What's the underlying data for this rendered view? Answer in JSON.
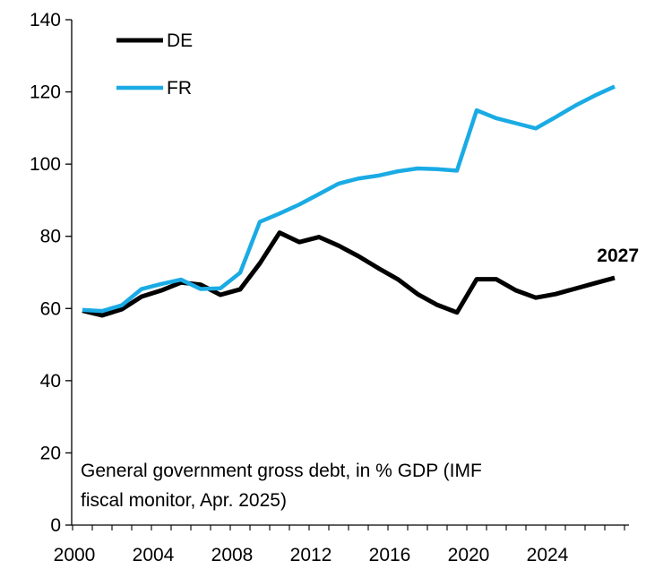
{
  "chart_data": {
    "type": "line",
    "title": "",
    "xlabel": "",
    "ylabel": "",
    "xlim": [
      2000,
      2027
    ],
    "ylim": [
      0,
      140
    ],
    "yticks": [
      0,
      20,
      40,
      60,
      80,
      100,
      120,
      140
    ],
    "xticks": [
      2000,
      2004,
      2008,
      2012,
      2016,
      2020,
      2024
    ],
    "grid": false,
    "legend_position": "top-left",
    "x": [
      2000,
      2001,
      2002,
      2003,
      2004,
      2005,
      2006,
      2007,
      2008,
      2009,
      2010,
      2011,
      2012,
      2013,
      2014,
      2015,
      2016,
      2017,
      2018,
      2019,
      2020,
      2021,
      2022,
      2023,
      2024,
      2025,
      2026,
      2027
    ],
    "series": [
      {
        "name": "DE",
        "color": "#000000",
        "values": [
          59.4,
          58.1,
          59.8,
          63.3,
          65.0,
          67.2,
          66.6,
          63.8,
          65.3,
          72.5,
          81.0,
          78.4,
          79.8,
          77.4,
          74.5,
          71.2,
          68.1,
          64.0,
          61.0,
          58.9,
          68.1,
          68.1,
          65.0,
          63.0,
          64.0,
          65.5,
          67.0,
          68.5
        ]
      },
      {
        "name": "FR",
        "color": "#1aabe4",
        "values": [
          59.6,
          59.3,
          60.9,
          65.4,
          66.8,
          68.0,
          65.4,
          65.6,
          69.9,
          84.0,
          86.3,
          88.8,
          91.7,
          94.6,
          96.0,
          96.8,
          98.0,
          98.8,
          98.6,
          98.2,
          114.9,
          112.7,
          111.3,
          109.9,
          113.0,
          116.2,
          119.0,
          121.5
        ]
      }
    ],
    "annotations": [
      {
        "text": "2027",
        "x": 2027,
        "series": "DE"
      }
    ],
    "note_lines": [
      "General government gross debt, in % GDP (IMF",
      "fiscal monitor, Apr. 2025)"
    ]
  }
}
